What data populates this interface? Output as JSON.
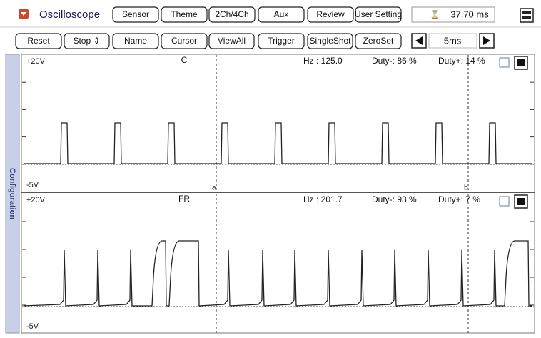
{
  "toolbar": {
    "app_title": "Oscilloscope",
    "top_buttons": [
      "Sensor",
      "Theme",
      "2Ch/4Ch",
      "Aux",
      "Review",
      "User Setting"
    ],
    "time_display": "37.70 ms",
    "control_buttons": [
      "Reset",
      "Stop ⇕",
      "Name",
      "Cursor",
      "ViewAll",
      "Trigger",
      "SingleShot",
      "ZeroSet"
    ],
    "timebase": "5ms"
  },
  "sidebar": {
    "label": "Configuration"
  },
  "channels": [
    {
      "name": "C",
      "top_label": "+20V",
      "bottom_label": "-5V",
      "readouts": [
        "Hz  : 125.0",
        "Duty-: 86 %",
        "Duty+: 14 %"
      ]
    },
    {
      "name": "FR",
      "top_label": "+20V",
      "bottom_label": "-5V",
      "readouts": [
        "Hz  : 201.7",
        "Duty-: 93 %",
        "Duty+: 7 %"
      ]
    }
  ],
  "cursors": [
    "a",
    "b"
  ]
}
